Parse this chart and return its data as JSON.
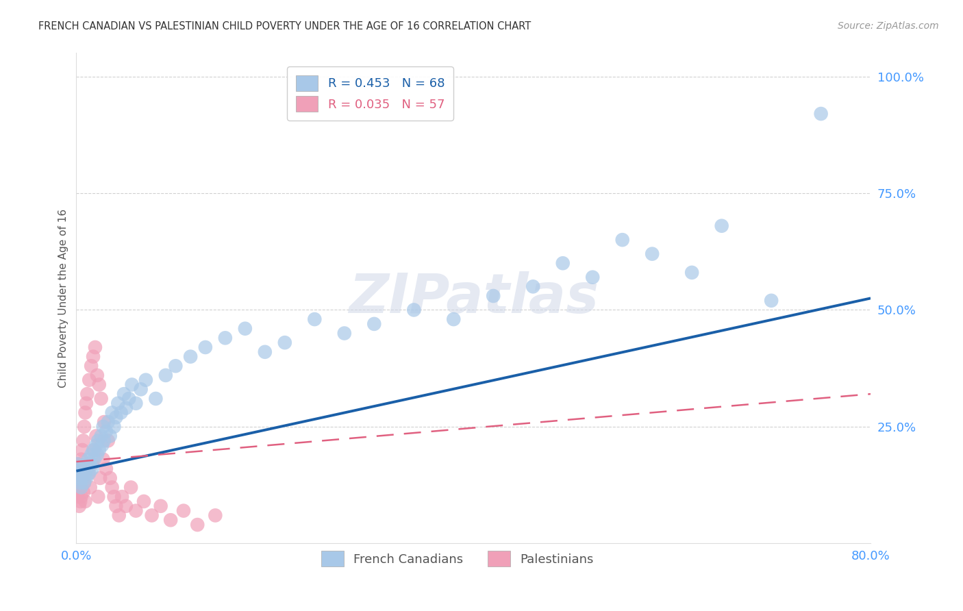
{
  "title": "FRENCH CANADIAN VS PALESTINIAN CHILD POVERTY UNDER THE AGE OF 16 CORRELATION CHART",
  "source": "Source: ZipAtlas.com",
  "ylabel": "Child Poverty Under the Age of 16",
  "xlim": [
    0.0,
    0.8
  ],
  "ylim": [
    0.0,
    1.05
  ],
  "r_french": 0.453,
  "n_french": 68,
  "r_pales": 0.035,
  "n_pales": 57,
  "french_color": "#a8c8e8",
  "pales_color": "#f0a0b8",
  "french_line_color": "#1a5fa8",
  "pales_line_color": "#e06080",
  "background_color": "#ffffff",
  "grid_color": "#cccccc",
  "french_x": [
    0.001,
    0.002,
    0.002,
    0.003,
    0.004,
    0.005,
    0.005,
    0.006,
    0.007,
    0.008,
    0.009,
    0.01,
    0.01,
    0.011,
    0.012,
    0.013,
    0.014,
    0.015,
    0.016,
    0.017,
    0.018,
    0.02,
    0.021,
    0.022,
    0.023,
    0.025,
    0.026,
    0.027,
    0.028,
    0.03,
    0.032,
    0.034,
    0.036,
    0.038,
    0.04,
    0.042,
    0.045,
    0.048,
    0.05,
    0.053,
    0.056,
    0.06,
    0.065,
    0.07,
    0.08,
    0.09,
    0.1,
    0.115,
    0.13,
    0.15,
    0.17,
    0.19,
    0.21,
    0.24,
    0.27,
    0.3,
    0.34,
    0.38,
    0.42,
    0.46,
    0.49,
    0.52,
    0.55,
    0.58,
    0.62,
    0.65,
    0.7,
    0.75
  ],
  "french_y": [
    0.17,
    0.15,
    0.14,
    0.16,
    0.13,
    0.15,
    0.12,
    0.14,
    0.16,
    0.13,
    0.15,
    0.17,
    0.14,
    0.16,
    0.18,
    0.15,
    0.17,
    0.19,
    0.16,
    0.2,
    0.18,
    0.21,
    0.19,
    0.22,
    0.2,
    0.23,
    0.21,
    0.25,
    0.22,
    0.24,
    0.26,
    0.23,
    0.28,
    0.25,
    0.27,
    0.3,
    0.28,
    0.32,
    0.29,
    0.31,
    0.34,
    0.3,
    0.33,
    0.35,
    0.31,
    0.36,
    0.38,
    0.4,
    0.42,
    0.44,
    0.46,
    0.41,
    0.43,
    0.48,
    0.45,
    0.47,
    0.5,
    0.48,
    0.53,
    0.55,
    0.6,
    0.57,
    0.65,
    0.62,
    0.58,
    0.68,
    0.52,
    0.92
  ],
  "pales_x": [
    0.001,
    0.001,
    0.001,
    0.002,
    0.002,
    0.002,
    0.003,
    0.003,
    0.003,
    0.004,
    0.004,
    0.005,
    0.005,
    0.006,
    0.006,
    0.007,
    0.007,
    0.008,
    0.008,
    0.009,
    0.009,
    0.01,
    0.011,
    0.012,
    0.013,
    0.014,
    0.015,
    0.016,
    0.017,
    0.018,
    0.019,
    0.02,
    0.021,
    0.022,
    0.023,
    0.024,
    0.025,
    0.027,
    0.028,
    0.03,
    0.032,
    0.034,
    0.036,
    0.038,
    0.04,
    0.043,
    0.046,
    0.05,
    0.055,
    0.06,
    0.068,
    0.076,
    0.085,
    0.095,
    0.108,
    0.122,
    0.14
  ],
  "pales_y": [
    0.14,
    0.12,
    0.1,
    0.15,
    0.13,
    0.11,
    0.17,
    0.08,
    0.16,
    0.12,
    0.09,
    0.18,
    0.1,
    0.2,
    0.14,
    0.22,
    0.11,
    0.25,
    0.13,
    0.28,
    0.09,
    0.3,
    0.32,
    0.15,
    0.35,
    0.12,
    0.38,
    0.17,
    0.4,
    0.2,
    0.42,
    0.23,
    0.36,
    0.1,
    0.34,
    0.14,
    0.31,
    0.18,
    0.26,
    0.16,
    0.22,
    0.14,
    0.12,
    0.1,
    0.08,
    0.06,
    0.1,
    0.08,
    0.12,
    0.07,
    0.09,
    0.06,
    0.08,
    0.05,
    0.07,
    0.04,
    0.06
  ],
  "fc_line_x0": 0.0,
  "fc_line_x1": 0.8,
  "fc_line_y0": 0.155,
  "fc_line_y1": 0.525,
  "pal_line_x0": 0.0,
  "pal_line_x1": 0.8,
  "pal_line_y0": 0.175,
  "pal_line_y1": 0.32,
  "ytick_positions": [
    0.25,
    0.5,
    0.75,
    1.0
  ],
  "ytick_labels": [
    "25.0%",
    "50.0%",
    "75.0%",
    "100.0%"
  ],
  "xtick_positions": [
    0.0,
    0.8
  ],
  "xtick_labels": [
    "0.0%",
    "80.0%"
  ],
  "tick_color": "#4499ff"
}
